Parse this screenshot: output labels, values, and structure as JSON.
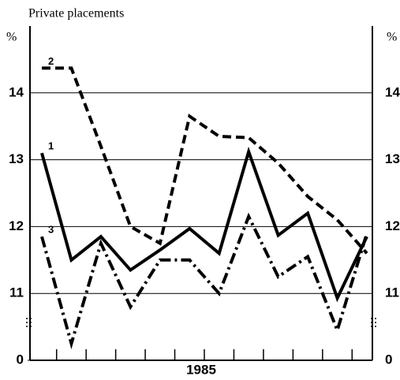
{
  "chart_data": {
    "type": "line",
    "title": "Private placements",
    "y_unit": "%",
    "x_label": "1985",
    "categories": [
      null,
      null,
      null,
      null,
      null,
      null,
      null,
      null,
      null,
      null,
      null,
      null
    ],
    "series": [
      {
        "name": "1",
        "color": "#000000",
        "style": "solid",
        "values": [
          13.1,
          11.5,
          11.85,
          11.35,
          11.65,
          11.97,
          11.6,
          13.12,
          11.87,
          12.2,
          10.93,
          11.85
        ]
      },
      {
        "name": "2",
        "color": "#000000",
        "style": "dashed",
        "values": [
          14.37,
          14.37,
          13.2,
          12.0,
          11.75,
          13.65,
          13.35,
          13.33,
          12.95,
          12.45,
          12.1,
          11.6
        ]
      },
      {
        "name": "3",
        "color": "#000000",
        "style": "dashdot",
        "values": [
          11.85,
          10.25,
          11.75,
          10.8,
          11.5,
          11.5,
          11.0,
          12.15,
          11.25,
          11.55,
          10.45,
          11.9
        ]
      }
    ],
    "ylim": [
      0,
      15
    ],
    "yticks": [
      0,
      11,
      12,
      13,
      14
    ],
    "axis_break": true,
    "grid": true
  }
}
